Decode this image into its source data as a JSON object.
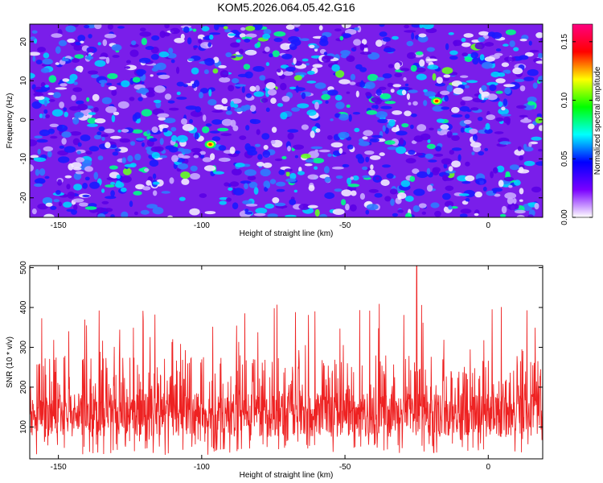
{
  "title": "KOM5.2026.064.05.42.G16",
  "chart_data": [
    {
      "type": "heatmap",
      "xlabel": "Height of straight line (km)",
      "ylabel": "Frequency (Hz)",
      "xlim": [
        -160,
        19
      ],
      "ylim": [
        -25,
        24.5
      ],
      "xticks": [
        -150,
        -100,
        -50,
        0
      ],
      "yticks": [
        -20,
        -10,
        0,
        10,
        20
      ],
      "colorbar": {
        "label": "Normalized spectral amplitude",
        "range": [
          0.0,
          0.165
        ],
        "ticks": [
          "0.00",
          "0.05",
          "0.10",
          "0.15"
        ],
        "tick_values": [
          0.0,
          0.05,
          0.1,
          0.15
        ],
        "colormap": [
          "#ffffff",
          "#7a00ff",
          "#0000ff",
          "#00ffff",
          "#00ff00",
          "#ffff00",
          "#ff0000",
          "#ff0080"
        ]
      },
      "peaks": [
        {
          "x": -18,
          "y": 4.8,
          "value": 0.16
        },
        {
          "x": -97,
          "y": -6.3,
          "value": 0.13
        }
      ]
    },
    {
      "type": "line",
      "xlabel": "Height of straight line (km)",
      "ylabel": "SNR (10 * v/v)",
      "xlim": [
        -160,
        19
      ],
      "ylim": [
        20,
        505
      ],
      "xticks": [
        -150,
        -100,
        -50,
        0
      ],
      "yticks": [
        100,
        200,
        300,
        400,
        500
      ],
      "series": [
        {
          "name": "SNR",
          "color": "#ee2222",
          "baseline": 130,
          "typical_range": [
            40,
            260
          ],
          "peak_x": -25,
          "peak_value": 505
        }
      ]
    }
  ]
}
